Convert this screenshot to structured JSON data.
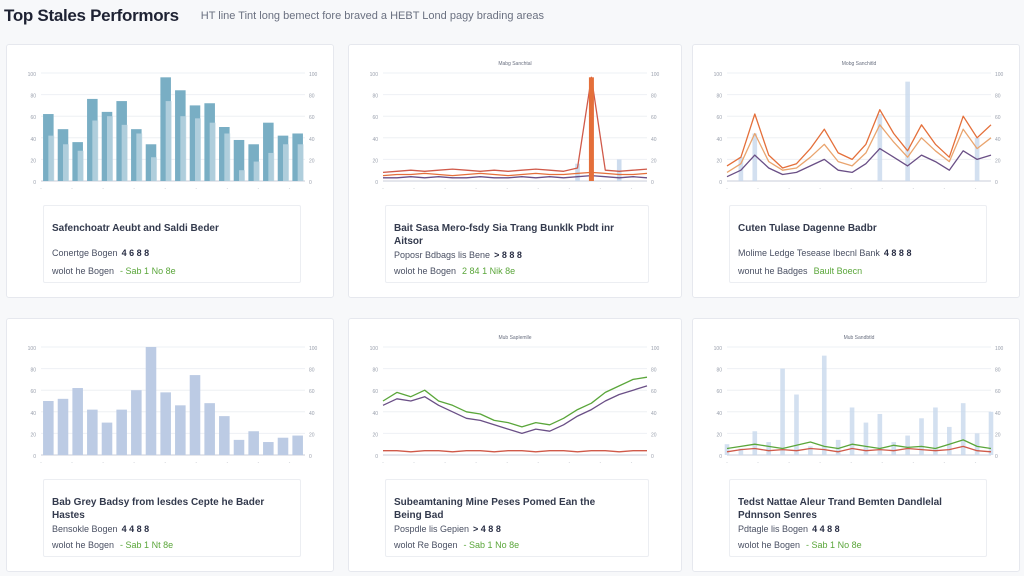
{
  "header": {
    "title": "Top Stales Performors",
    "subtitle": "HT line Tint long bemect fore braved a HEBT Lond pagy brading areas"
  },
  "colors": {
    "bar_teal": "#79aec4",
    "bar_teal_light": "#b9d3e0",
    "bar_lavender": "#bccbe4",
    "line_orange": "#e46f3a",
    "line_purple": "#6a4f86",
    "line_green": "#5aa63a",
    "line_red": "#d05a4a",
    "axis": "#c9ced8"
  },
  "cards": [
    {
      "info_title": "Safenchoatr Aeubt and Saldi Beder",
      "metric1_label": "Conertge Bogen",
      "metric1_value": "4 6 8 8",
      "metric2_label": "wolot he Bogen",
      "metric2_value": "- Sab 1 No 8e"
    },
    {
      "info_title": "Bait Sasa Mero-fsdy Sia Trang Bunklk Pbdt inr Aitsor",
      "metric1_label": "Poposr Bdbags lis Bene",
      "metric1_value": "> 8 8 8",
      "metric2_label": "wolot he Bogen",
      "metric2_value": "2 84 1 Nik 8e"
    },
    {
      "info_title": "Cuten Tulase Dagenne Badbr",
      "metric1_label": "Molime Ledge Tesease Ibecnl Bank",
      "metric1_value": "4 8 8 8",
      "metric2_label": "wonut he Badges",
      "metric2_value": "Bault Boecn"
    },
    {
      "info_title": "Bab Grey Badsy from lesdes Cepte he Bader Hastes",
      "metric1_label": "Bensokle Bogen",
      "metric1_value": "4 4 8 8",
      "metric2_label": "wolot he Bogen",
      "metric2_value": "- Sab 1 Nt 8e"
    },
    {
      "info_title": "Subeamtaning Mine Peses Pomed Ean the Being Bad",
      "metric1_label": "Pospdle lis Gepien",
      "metric1_value": "> 4 8 8",
      "metric2_label": "wolot Re Bogen",
      "metric2_value": "- Sab 1 No 8e"
    },
    {
      "info_title": "Tedst Nattae Aleur Trand Bemten Dandlelal Pdnnson Senres",
      "metric1_label": "Pdtagle lis Bogen",
      "metric1_value": "4 4 8 8",
      "metric2_label": "wolot he Bogen",
      "metric2_value": "- Sab 1 No 8e"
    }
  ],
  "chart_data": [
    {
      "type": "bar",
      "title": "",
      "ylim": [
        0,
        100
      ],
      "series": [
        {
          "values": [
            62,
            48,
            36,
            76,
            64,
            74,
            48,
            34,
            96,
            84,
            70,
            72,
            50,
            38,
            34,
            54,
            42,
            44
          ]
        },
        {
          "values": [
            42,
            34,
            28,
            56,
            60,
            52,
            44,
            22,
            74,
            60,
            58,
            54,
            44,
            10,
            18,
            26,
            34,
            34
          ]
        }
      ]
    },
    {
      "type": "line",
      "title": "Mabg Sanchtal",
      "ylim": [
        0,
        100
      ],
      "series": [
        {
          "name": "",
          "values": [
            8,
            9,
            10,
            9,
            10,
            11,
            10,
            9,
            10,
            9,
            10,
            11,
            10,
            9,
            12,
            96,
            10,
            9,
            10,
            11
          ]
        },
        {
          "name": "",
          "values": [
            5,
            6,
            6,
            7,
            6,
            5,
            6,
            7,
            6,
            5,
            6,
            7,
            6,
            6,
            7,
            8,
            7,
            6,
            6,
            7
          ]
        },
        {
          "name": "",
          "values": [
            3,
            3,
            4,
            3,
            4,
            3,
            3,
            4,
            3,
            3,
            4,
            3,
            4,
            3,
            4,
            5,
            4,
            3,
            4,
            3
          ]
        }
      ],
      "bars": [
        0,
        0,
        0,
        0,
        0,
        0,
        0,
        0,
        0,
        0,
        0,
        0,
        0,
        0,
        16,
        0,
        0,
        20,
        0,
        0
      ]
    },
    {
      "type": "line",
      "title": "Mobg Sanchitld",
      "ylim": [
        0,
        100
      ],
      "series": [
        {
          "name": "",
          "values": [
            14,
            22,
            62,
            24,
            12,
            16,
            30,
            48,
            26,
            20,
            34,
            66,
            44,
            28,
            52,
            34,
            22,
            60,
            40,
            52
          ]
        },
        {
          "name": "",
          "values": [
            8,
            16,
            44,
            18,
            10,
            12,
            22,
            34,
            18,
            14,
            26,
            52,
            36,
            22,
            40,
            28,
            18,
            48,
            30,
            40
          ]
        },
        {
          "name": "",
          "values": [
            4,
            10,
            24,
            12,
            6,
            8,
            14,
            20,
            10,
            8,
            16,
            30,
            22,
            14,
            24,
            18,
            10,
            28,
            20,
            24
          ]
        }
      ],
      "bars": [
        0,
        22,
        44,
        0,
        0,
        0,
        0,
        0,
        0,
        0,
        0,
        62,
        0,
        92,
        0,
        0,
        0,
        0,
        40,
        0
      ]
    },
    {
      "type": "bar",
      "title": "",
      "ylim": [
        0,
        100
      ],
      "series": [
        {
          "values": [
            50,
            52,
            62,
            42,
            30,
            42,
            60,
            100,
            58,
            46,
            74,
            48,
            36,
            14,
            22,
            12,
            16,
            18
          ]
        }
      ]
    },
    {
      "type": "line",
      "title": "Mub Saplemlle",
      "ylim": [
        0,
        100
      ],
      "series": [
        {
          "name": "",
          "values": [
            50,
            58,
            54,
            60,
            50,
            46,
            40,
            38,
            32,
            30,
            26,
            30,
            28,
            34,
            42,
            48,
            58,
            64,
            70,
            72
          ]
        },
        {
          "name": "",
          "values": [
            46,
            52,
            50,
            54,
            46,
            40,
            34,
            32,
            28,
            24,
            20,
            24,
            22,
            28,
            36,
            42,
            50,
            56,
            60,
            64
          ]
        },
        {
          "name": "",
          "values": [
            4,
            4,
            3,
            4,
            4,
            3,
            4,
            4,
            3,
            4,
            4,
            3,
            4,
            4,
            3,
            4,
            4,
            3,
            4,
            4
          ]
        }
      ]
    },
    {
      "type": "line",
      "title": "Mub Sandbtld",
      "ylim": [
        0,
        100
      ],
      "series": [
        {
          "name": "",
          "values": [
            6,
            8,
            10,
            8,
            6,
            9,
            12,
            8,
            6,
            10,
            8,
            6,
            9,
            7,
            8,
            6,
            10,
            14,
            8,
            6
          ]
        },
        {
          "name": "",
          "values": [
            3,
            5,
            6,
            4,
            5,
            4,
            6,
            5,
            3,
            6,
            4,
            5,
            4,
            6,
            5,
            4,
            5,
            8,
            4,
            3
          ]
        }
      ],
      "bars": [
        10,
        6,
        22,
        12,
        80,
        56,
        8,
        92,
        14,
        44,
        30,
        38,
        12,
        18,
        34,
        44,
        26,
        48,
        20,
        40
      ]
    }
  ]
}
